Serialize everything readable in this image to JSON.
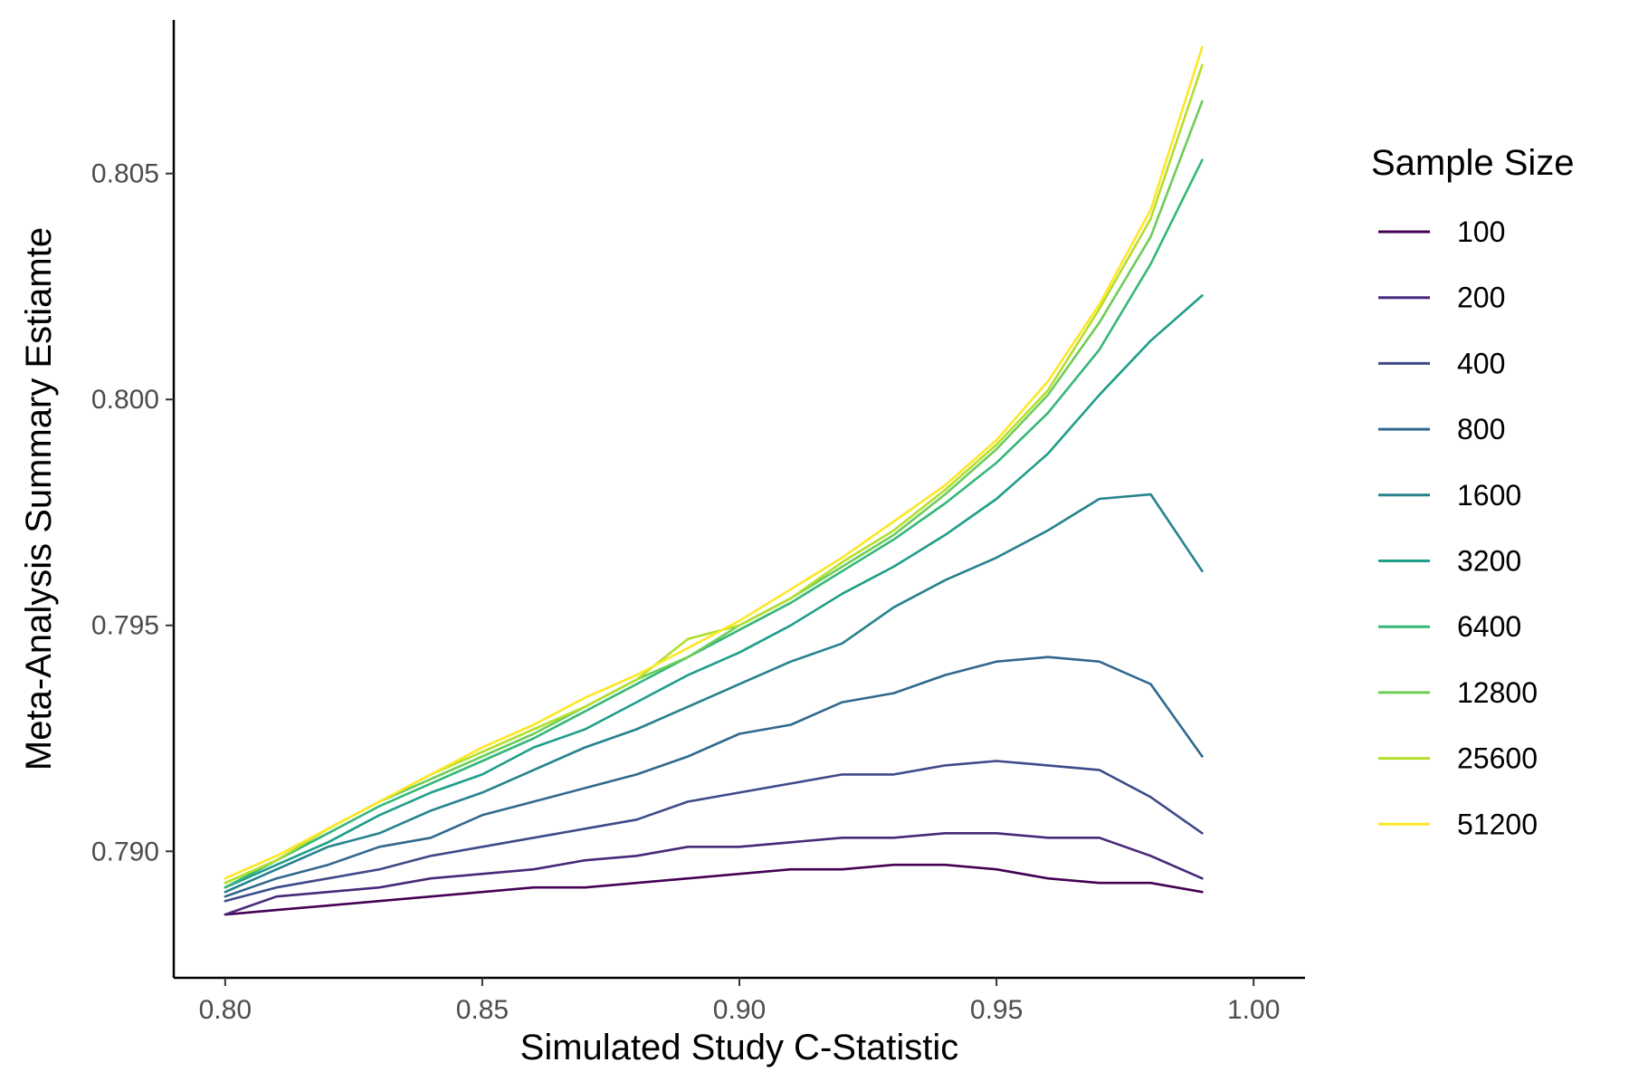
{
  "chart_data": {
    "type": "line",
    "title": "",
    "xlabel": "Simulated Study C-Statistic",
    "ylabel": "Meta-Analysis Summary Estiamte",
    "xlim": [
      0.79,
      1.01
    ],
    "ylim": [
      0.7872,
      0.8084
    ],
    "x_ticks": [
      0.8,
      0.85,
      0.9,
      0.95,
      1.0
    ],
    "x_tick_labels": [
      "0.80",
      "0.85",
      "0.90",
      "0.95",
      "1.00"
    ],
    "y_ticks": [
      0.79,
      0.795,
      0.8,
      0.805
    ],
    "y_tick_labels": [
      "0.790",
      "0.795",
      "0.800",
      "0.805"
    ],
    "grid": false,
    "legend": {
      "title": "Sample Size",
      "position": "right"
    },
    "x": [
      0.8,
      0.81,
      0.82,
      0.83,
      0.84,
      0.85,
      0.86,
      0.87,
      0.88,
      0.89,
      0.9,
      0.91,
      0.92,
      0.93,
      0.94,
      0.95,
      0.96,
      0.97,
      0.98,
      0.99
    ],
    "series": [
      {
        "name": "100",
        "color": "#440154",
        "values": [
          0.7886,
          0.7887,
          0.7888,
          0.7889,
          0.789,
          0.7891,
          0.7892,
          0.7892,
          0.7893,
          0.7894,
          0.7895,
          0.7896,
          0.7896,
          0.7897,
          0.7897,
          0.7896,
          0.7894,
          0.7893,
          0.7893,
          0.7891
        ]
      },
      {
        "name": "200",
        "color": "#482878",
        "values": [
          0.7886,
          0.789,
          0.7891,
          0.7892,
          0.7894,
          0.7895,
          0.7896,
          0.7898,
          0.7899,
          0.7901,
          0.7901,
          0.7902,
          0.7903,
          0.7903,
          0.7904,
          0.7904,
          0.7903,
          0.7903,
          0.7899,
          0.7894
        ]
      },
      {
        "name": "400",
        "color": "#3E4A89",
        "values": [
          0.7889,
          0.7892,
          0.7894,
          0.7896,
          0.7899,
          0.7901,
          0.7903,
          0.7905,
          0.7907,
          0.7911,
          0.7913,
          0.7915,
          0.7917,
          0.7917,
          0.7919,
          0.792,
          0.7919,
          0.7918,
          0.7912,
          0.7904
        ]
      },
      {
        "name": "800",
        "color": "#31688E",
        "values": [
          0.789,
          0.7894,
          0.7897,
          0.7901,
          0.7903,
          0.7908,
          0.7911,
          0.7914,
          0.7917,
          0.7921,
          0.7926,
          0.7928,
          0.7933,
          0.7935,
          0.7939,
          0.7942,
          0.7943,
          0.7942,
          0.7937,
          0.7921
        ]
      },
      {
        "name": "1600",
        "color": "#26828E",
        "values": [
          0.7891,
          0.7896,
          0.7901,
          0.7904,
          0.7909,
          0.7913,
          0.7918,
          0.7923,
          0.7927,
          0.7932,
          0.7937,
          0.7942,
          0.7946,
          0.7954,
          0.796,
          0.7965,
          0.7971,
          0.7978,
          0.7979,
          0.7962
        ]
      },
      {
        "name": "3200",
        "color": "#1F9E89",
        "values": [
          0.7892,
          0.7897,
          0.7902,
          0.7908,
          0.7913,
          0.7917,
          0.7923,
          0.7927,
          0.7933,
          0.7939,
          0.7944,
          0.795,
          0.7957,
          0.7963,
          0.797,
          0.7978,
          0.7988,
          0.8001,
          0.8013,
          0.8023
        ]
      },
      {
        "name": "6400",
        "color": "#35B779",
        "values": [
          0.7892,
          0.7898,
          0.7904,
          0.791,
          0.7915,
          0.792,
          0.7925,
          0.7931,
          0.7937,
          0.7943,
          0.7949,
          0.7955,
          0.7962,
          0.7969,
          0.7977,
          0.7986,
          0.7997,
          0.8011,
          0.803,
          0.8053
        ]
      },
      {
        "name": "12800",
        "color": "#6DCD59",
        "values": [
          0.7893,
          0.7898,
          0.7905,
          0.7911,
          0.7916,
          0.7921,
          0.7926,
          0.7932,
          0.7938,
          0.7943,
          0.795,
          0.7956,
          0.7963,
          0.797,
          0.7979,
          0.7989,
          0.8001,
          0.8017,
          0.8036,
          0.8066
        ]
      },
      {
        "name": "25600",
        "color": "#B4DE2C",
        "values": [
          0.7893,
          0.7898,
          0.7905,
          0.7911,
          0.7917,
          0.7922,
          0.7927,
          0.7932,
          0.7938,
          0.7947,
          0.795,
          0.7956,
          0.7964,
          0.7971,
          0.798,
          0.799,
          0.8002,
          0.802,
          0.804,
          0.8074
        ]
      },
      {
        "name": "51200",
        "color": "#FDE725",
        "values": [
          0.7894,
          0.7899,
          0.7905,
          0.7911,
          0.7917,
          0.7923,
          0.7928,
          0.7934,
          0.7939,
          0.7945,
          0.7951,
          0.7958,
          0.7965,
          0.7973,
          0.7981,
          0.7991,
          0.8004,
          0.8021,
          0.8042,
          0.8078
        ]
      }
    ]
  }
}
